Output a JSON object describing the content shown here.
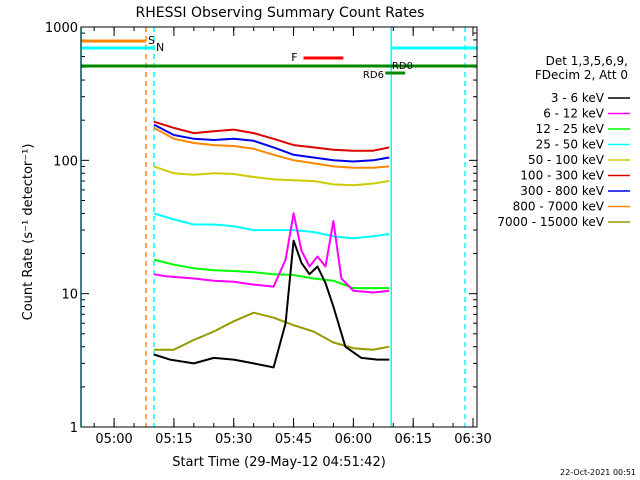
{
  "chart_data": {
    "type": "line",
    "title": "RHESSI Observing Summary Count Rates",
    "xlabel": "Start Time (29-May-12 04:51:42)",
    "ylabel": "Count Rate (s⁻¹ detector⁻¹)",
    "y_scale": "log",
    "ylim": [
      1,
      1000
    ],
    "xlim": [
      "04:51:42",
      "06:31:00"
    ],
    "y_ticks": [
      {
        "value": 1,
        "label": "1"
      },
      {
        "value": 10,
        "label": "10"
      },
      {
        "value": 100,
        "label": "100"
      },
      {
        "value": 1000,
        "label": "1000"
      }
    ],
    "x_ticks": [
      {
        "value": "05:00",
        "label": "05:00"
      },
      {
        "value": "05:15",
        "label": "05:15"
      },
      {
        "value": "05:30",
        "label": "05:30"
      },
      {
        "value": "05:45",
        "label": "05:45"
      },
      {
        "value": "06:00",
        "label": "06:00"
      },
      {
        "value": "06:15",
        "label": "06:15"
      },
      {
        "value": "06:30",
        "label": "06:30"
      }
    ],
    "legend_header": [
      "Det 1,3,5,6,9,",
      "FDecim 2, Att 0"
    ],
    "legend_placement": "right",
    "series": [
      {
        "name": "3 - 6 keV",
        "color": "#000000",
        "points": [
          [
            "05:10",
            3.5
          ],
          [
            "05:14",
            3.2
          ],
          [
            "05:20",
            3.0
          ],
          [
            "05:25",
            3.3
          ],
          [
            "05:30",
            3.2
          ],
          [
            "05:35",
            3.0
          ],
          [
            "05:40",
            2.8
          ],
          [
            "05:43",
            6
          ],
          [
            "05:45",
            25
          ],
          [
            "05:47",
            17
          ],
          [
            "05:49",
            14
          ],
          [
            "05:51",
            16
          ],
          [
            "05:53",
            12
          ],
          [
            "05:55",
            8
          ],
          [
            "05:58",
            4
          ],
          [
            "06:02",
            3.3
          ],
          [
            "06:06",
            3.2
          ],
          [
            "06:09",
            3.2
          ]
        ]
      },
      {
        "name": "6 - 12 keV",
        "color": "#ff00ff",
        "points": [
          [
            "05:10",
            14
          ],
          [
            "05:13",
            13.5
          ],
          [
            "05:20",
            13
          ],
          [
            "05:25",
            12.5
          ],
          [
            "05:30",
            12.3
          ],
          [
            "05:35",
            11.7
          ],
          [
            "05:40",
            11.3
          ],
          [
            "05:43",
            18
          ],
          [
            "05:45",
            40
          ],
          [
            "05:47",
            21
          ],
          [
            "05:49",
            16
          ],
          [
            "05:51",
            19
          ],
          [
            "05:53",
            16
          ],
          [
            "05:55",
            35
          ],
          [
            "05:57",
            13
          ],
          [
            "06:00",
            10.5
          ],
          [
            "06:05",
            10.2
          ],
          [
            "06:09",
            10.5
          ]
        ]
      },
      {
        "name": "12 - 25 keV",
        "color": "#00ff00",
        "points": [
          [
            "05:10",
            18
          ],
          [
            "05:15",
            16.5
          ],
          [
            "05:20",
            15.5
          ],
          [
            "05:25",
            15
          ],
          [
            "05:30",
            14.8
          ],
          [
            "05:35",
            14.5
          ],
          [
            "05:40",
            14
          ],
          [
            "05:45",
            13.8
          ],
          [
            "05:50",
            13
          ],
          [
            "05:55",
            12.5
          ],
          [
            "06:00",
            11
          ],
          [
            "06:05",
            11
          ],
          [
            "06:09",
            11
          ]
        ]
      },
      {
        "name": "25 - 50 keV",
        "color": "#00ffff",
        "points": [
          [
            "05:10",
            40
          ],
          [
            "05:15",
            36
          ],
          [
            "05:20",
            33
          ],
          [
            "05:25",
            33
          ],
          [
            "05:30",
            32
          ],
          [
            "05:35",
            30
          ],
          [
            "05:40",
            30
          ],
          [
            "05:45",
            30
          ],
          [
            "05:50",
            29
          ],
          [
            "05:55",
            27
          ],
          [
            "06:00",
            26
          ],
          [
            "06:05",
            27
          ],
          [
            "06:09",
            28
          ]
        ]
      },
      {
        "name": "50 - 100 keV",
        "color": "#cccc00",
        "points": [
          [
            "05:10",
            90
          ],
          [
            "05:15",
            80
          ],
          [
            "05:20",
            78
          ],
          [
            "05:25",
            80
          ],
          [
            "05:30",
            79
          ],
          [
            "05:35",
            75
          ],
          [
            "05:40",
            72
          ],
          [
            "05:45",
            71
          ],
          [
            "05:50",
            70
          ],
          [
            "05:55",
            66
          ],
          [
            "06:00",
            65
          ],
          [
            "06:05",
            67
          ],
          [
            "06:09",
            70
          ]
        ]
      },
      {
        "name": "100 - 300 keV",
        "color": "#dd0000",
        "points": [
          [
            "05:10",
            195
          ],
          [
            "05:15",
            175
          ],
          [
            "05:20",
            160
          ],
          [
            "05:25",
            165
          ],
          [
            "05:30",
            170
          ],
          [
            "05:35",
            160
          ],
          [
            "05:40",
            145
          ],
          [
            "05:45",
            130
          ],
          [
            "05:50",
            125
          ],
          [
            "05:55",
            120
          ],
          [
            "06:00",
            118
          ],
          [
            "06:05",
            118
          ],
          [
            "06:09",
            125
          ]
        ]
      },
      {
        "name": "300 - 800 keV",
        "color": "#0000ee",
        "points": [
          [
            "05:10",
            185
          ],
          [
            "05:15",
            155
          ],
          [
            "05:20",
            145
          ],
          [
            "05:25",
            142
          ],
          [
            "05:30",
            145
          ],
          [
            "05:35",
            140
          ],
          [
            "05:40",
            125
          ],
          [
            "05:45",
            110
          ],
          [
            "05:50",
            105
          ],
          [
            "05:55",
            100
          ],
          [
            "06:00",
            98
          ],
          [
            "06:05",
            100
          ],
          [
            "06:09",
            105
          ]
        ]
      },
      {
        "name": "800 - 7000 keV",
        "color": "#ff8800",
        "points": [
          [
            "05:10",
            175
          ],
          [
            "05:15",
            145
          ],
          [
            "05:20",
            135
          ],
          [
            "05:25",
            130
          ],
          [
            "05:30",
            128
          ],
          [
            "05:35",
            122
          ],
          [
            "05:40",
            110
          ],
          [
            "05:45",
            100
          ],
          [
            "05:50",
            95
          ],
          [
            "05:55",
            90
          ],
          [
            "06:00",
            88
          ],
          [
            "06:05",
            88
          ],
          [
            "06:09",
            90
          ]
        ]
      },
      {
        "name": "7000 - 15000 keV",
        "color": "#999900",
        "points": [
          [
            "05:10",
            3.8
          ],
          [
            "05:15",
            3.8
          ],
          [
            "05:20",
            4.5
          ],
          [
            "05:25",
            5.2
          ],
          [
            "05:30",
            6.2
          ],
          [
            "05:35",
            7.2
          ],
          [
            "05:40",
            6.6
          ],
          [
            "05:45",
            5.8
          ],
          [
            "05:50",
            5.2
          ],
          [
            "05:55",
            4.3
          ],
          [
            "06:00",
            3.9
          ],
          [
            "06:05",
            3.8
          ],
          [
            "06:09",
            4.0
          ]
        ]
      }
    ],
    "annotations": {
      "s_label": "S",
      "n_label": "N",
      "f_label": "F",
      "rd0_label": "RD0",
      "rd6_label": "RD6"
    },
    "footer_date": "22-Oct-2021 00:51"
  }
}
